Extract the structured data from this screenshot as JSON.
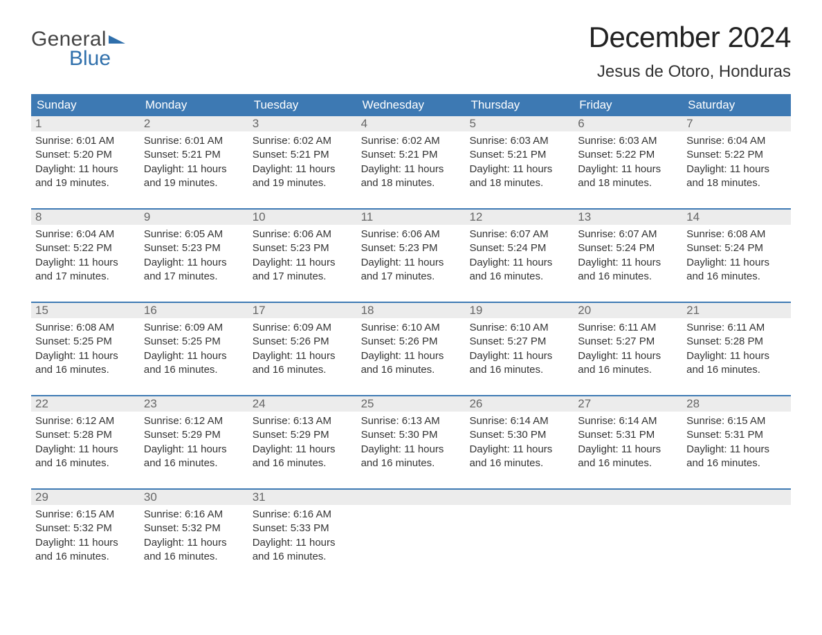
{
  "colors": {
    "header_bg": "#3d79b3",
    "accent": "#2f6fab",
    "daynum_bg": "#ececec",
    "text": "#333333",
    "title_text": "#222222",
    "page_bg": "#ffffff"
  },
  "logo": {
    "word1": "General",
    "word2": "Blue"
  },
  "title": "December 2024",
  "location": "Jesus de Otoro, Honduras",
  "day_headers": [
    "Sunday",
    "Monday",
    "Tuesday",
    "Wednesday",
    "Thursday",
    "Friday",
    "Saturday"
  ],
  "weeks": [
    [
      {
        "n": "1",
        "sunrise": "6:01 AM",
        "sunset": "5:20 PM",
        "dl": "11 hours and 19 minutes."
      },
      {
        "n": "2",
        "sunrise": "6:01 AM",
        "sunset": "5:21 PM",
        "dl": "11 hours and 19 minutes."
      },
      {
        "n": "3",
        "sunrise": "6:02 AM",
        "sunset": "5:21 PM",
        "dl": "11 hours and 19 minutes."
      },
      {
        "n": "4",
        "sunrise": "6:02 AM",
        "sunset": "5:21 PM",
        "dl": "11 hours and 18 minutes."
      },
      {
        "n": "5",
        "sunrise": "6:03 AM",
        "sunset": "5:21 PM",
        "dl": "11 hours and 18 minutes."
      },
      {
        "n": "6",
        "sunrise": "6:03 AM",
        "sunset": "5:22 PM",
        "dl": "11 hours and 18 minutes."
      },
      {
        "n": "7",
        "sunrise": "6:04 AM",
        "sunset": "5:22 PM",
        "dl": "11 hours and 18 minutes."
      }
    ],
    [
      {
        "n": "8",
        "sunrise": "6:04 AM",
        "sunset": "5:22 PM",
        "dl": "11 hours and 17 minutes."
      },
      {
        "n": "9",
        "sunrise": "6:05 AM",
        "sunset": "5:23 PM",
        "dl": "11 hours and 17 minutes."
      },
      {
        "n": "10",
        "sunrise": "6:06 AM",
        "sunset": "5:23 PM",
        "dl": "11 hours and 17 minutes."
      },
      {
        "n": "11",
        "sunrise": "6:06 AM",
        "sunset": "5:23 PM",
        "dl": "11 hours and 17 minutes."
      },
      {
        "n": "12",
        "sunrise": "6:07 AM",
        "sunset": "5:24 PM",
        "dl": "11 hours and 16 minutes."
      },
      {
        "n": "13",
        "sunrise": "6:07 AM",
        "sunset": "5:24 PM",
        "dl": "11 hours and 16 minutes."
      },
      {
        "n": "14",
        "sunrise": "6:08 AM",
        "sunset": "5:24 PM",
        "dl": "11 hours and 16 minutes."
      }
    ],
    [
      {
        "n": "15",
        "sunrise": "6:08 AM",
        "sunset": "5:25 PM",
        "dl": "11 hours and 16 minutes."
      },
      {
        "n": "16",
        "sunrise": "6:09 AM",
        "sunset": "5:25 PM",
        "dl": "11 hours and 16 minutes."
      },
      {
        "n": "17",
        "sunrise": "6:09 AM",
        "sunset": "5:26 PM",
        "dl": "11 hours and 16 minutes."
      },
      {
        "n": "18",
        "sunrise": "6:10 AM",
        "sunset": "5:26 PM",
        "dl": "11 hours and 16 minutes."
      },
      {
        "n": "19",
        "sunrise": "6:10 AM",
        "sunset": "5:27 PM",
        "dl": "11 hours and 16 minutes."
      },
      {
        "n": "20",
        "sunrise": "6:11 AM",
        "sunset": "5:27 PM",
        "dl": "11 hours and 16 minutes."
      },
      {
        "n": "21",
        "sunrise": "6:11 AM",
        "sunset": "5:28 PM",
        "dl": "11 hours and 16 minutes."
      }
    ],
    [
      {
        "n": "22",
        "sunrise": "6:12 AM",
        "sunset": "5:28 PM",
        "dl": "11 hours and 16 minutes."
      },
      {
        "n": "23",
        "sunrise": "6:12 AM",
        "sunset": "5:29 PM",
        "dl": "11 hours and 16 minutes."
      },
      {
        "n": "24",
        "sunrise": "6:13 AM",
        "sunset": "5:29 PM",
        "dl": "11 hours and 16 minutes."
      },
      {
        "n": "25",
        "sunrise": "6:13 AM",
        "sunset": "5:30 PM",
        "dl": "11 hours and 16 minutes."
      },
      {
        "n": "26",
        "sunrise": "6:14 AM",
        "sunset": "5:30 PM",
        "dl": "11 hours and 16 minutes."
      },
      {
        "n": "27",
        "sunrise": "6:14 AM",
        "sunset": "5:31 PM",
        "dl": "11 hours and 16 minutes."
      },
      {
        "n": "28",
        "sunrise": "6:15 AM",
        "sunset": "5:31 PM",
        "dl": "11 hours and 16 minutes."
      }
    ],
    [
      {
        "n": "29",
        "sunrise": "6:15 AM",
        "sunset": "5:32 PM",
        "dl": "11 hours and 16 minutes."
      },
      {
        "n": "30",
        "sunrise": "6:16 AM",
        "sunset": "5:32 PM",
        "dl": "11 hours and 16 minutes."
      },
      {
        "n": "31",
        "sunrise": "6:16 AM",
        "sunset": "5:33 PM",
        "dl": "11 hours and 16 minutes."
      },
      {
        "empty": true
      },
      {
        "empty": true
      },
      {
        "empty": true
      },
      {
        "empty": true
      }
    ]
  ],
  "labels": {
    "sunrise_prefix": "Sunrise: ",
    "sunset_prefix": "Sunset: ",
    "daylight_prefix": "Daylight: "
  }
}
